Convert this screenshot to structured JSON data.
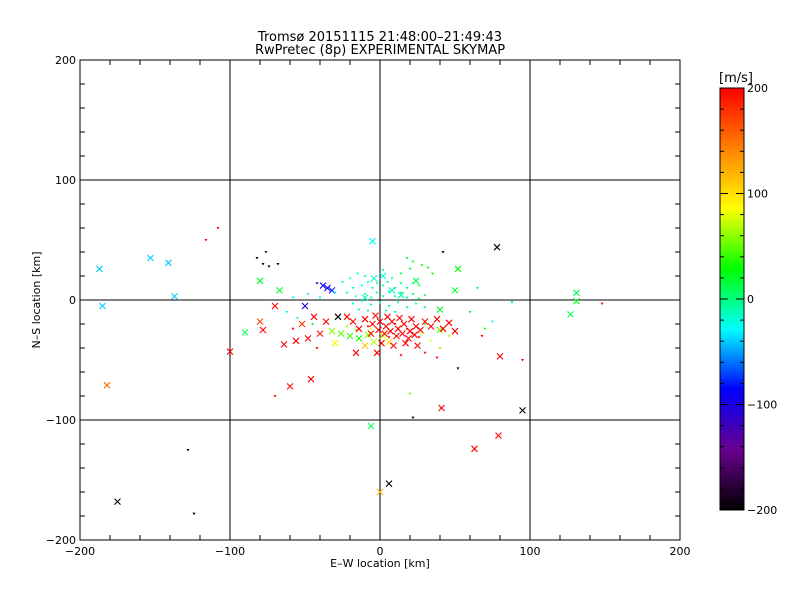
{
  "chart_data": {
    "type": "scatter",
    "title": "Tromsø 20151115 21:48:00–21:49:43",
    "subtitle": "RwPretec (8p) EXPERIMENTAL SKYMAP",
    "xlabel": "E–W location [km]",
    "ylabel": "N–S location [km]",
    "xlim": [
      -200,
      200
    ],
    "ylim": [
      -200,
      200
    ],
    "xticks": [
      -200,
      -100,
      0,
      100,
      200
    ],
    "yticks": [
      -200,
      -100,
      0,
      100,
      200
    ],
    "xtick_labels": [
      "−200",
      "−100",
      "0",
      "100",
      "200"
    ],
    "ytick_labels": [
      "−200",
      "−100",
      "0",
      "100",
      "200"
    ],
    "grid": true,
    "colorbar": {
      "label": "[m/s]",
      "range": [
        -200,
        200
      ],
      "ticks": [
        -200,
        -100,
        0,
        100,
        200
      ],
      "tick_labels": [
        "−200",
        "−100",
        "0",
        "100",
        "200"
      ],
      "colormap_stops": [
        "#000000",
        "#6a0090",
        "#0000ff",
        "#00ffff",
        "#00ff00",
        "#ffff00",
        "#ff8000",
        "#ff0000"
      ]
    },
    "points": [
      {
        "x": 78,
        "y": 44,
        "v": -205,
        "m": "x"
      },
      {
        "x": 95,
        "y": -92,
        "v": -205,
        "m": "x"
      },
      {
        "x": 6,
        "y": -153,
        "v": -205,
        "m": "x"
      },
      {
        "x": -175,
        "y": -168,
        "v": -205,
        "m": "x"
      },
      {
        "x": -128,
        "y": -125,
        "v": -205,
        "m": "."
      },
      {
        "x": -124,
        "y": -178,
        "v": -205,
        "m": "."
      },
      {
        "x": 22,
        "y": -98,
        "v": -205,
        "m": "."
      },
      {
        "x": 52,
        "y": -57,
        "v": -205,
        "m": "."
      },
      {
        "x": 42,
        "y": 40,
        "v": -205,
        "m": "."
      },
      {
        "x": -82,
        "y": 35,
        "v": -205,
        "m": "."
      },
      {
        "x": -78,
        "y": 30,
        "v": -205,
        "m": "."
      },
      {
        "x": -74,
        "y": 28,
        "v": -205,
        "m": "."
      },
      {
        "x": -68,
        "y": 30,
        "v": -205,
        "m": "."
      },
      {
        "x": -76,
        "y": 40,
        "v": -160,
        "m": "."
      },
      {
        "x": -28,
        "y": -14,
        "v": -205,
        "m": "x"
      },
      {
        "x": -38,
        "y": 12,
        "v": -90,
        "m": "x"
      },
      {
        "x": -35,
        "y": 10,
        "v": -90,
        "m": "x"
      },
      {
        "x": -32,
        "y": 8,
        "v": -80,
        "m": "x"
      },
      {
        "x": -50,
        "y": -5,
        "v": -100,
        "m": "x"
      },
      {
        "x": -42,
        "y": 14,
        "v": -110,
        "m": "."
      },
      {
        "x": -153,
        "y": 35,
        "v": -40,
        "m": "x"
      },
      {
        "x": -141,
        "y": 31,
        "v": -40,
        "m": "x"
      },
      {
        "x": -137,
        "y": 3,
        "v": -40,
        "m": "x"
      },
      {
        "x": -187,
        "y": 26,
        "v": -40,
        "m": "x"
      },
      {
        "x": -185,
        "y": -5,
        "v": -40,
        "m": "x"
      },
      {
        "x": -5,
        "y": 49,
        "v": -30,
        "m": "x"
      },
      {
        "x": -90,
        "y": -27,
        "v": 10,
        "m": "x"
      },
      {
        "x": -6,
        "y": -105,
        "v": 10,
        "m": "x"
      },
      {
        "x": 131,
        "y": 6,
        "v": 10,
        "m": "x"
      },
      {
        "x": 127,
        "y": -12,
        "v": 10,
        "m": "x"
      },
      {
        "x": 131,
        "y": -1,
        "v": 20,
        "m": "x"
      },
      {
        "x": 52,
        "y": 26,
        "v": 30,
        "m": "x"
      },
      {
        "x": 50,
        "y": 8,
        "v": 20,
        "m": "x"
      },
      {
        "x": 40,
        "y": -8,
        "v": 20,
        "m": "x"
      },
      {
        "x": -67,
        "y": 8,
        "v": 20,
        "m": "x"
      },
      {
        "x": -80,
        "y": 16,
        "v": 20,
        "m": "x"
      },
      {
        "x": -20,
        "y": 18,
        "v": -20,
        "m": "."
      },
      {
        "x": -15,
        "y": 22,
        "v": -20,
        "m": "."
      },
      {
        "x": -10,
        "y": 20,
        "v": -15,
        "m": "."
      },
      {
        "x": 2,
        "y": 25,
        "v": -10,
        "m": "."
      },
      {
        "x": 8,
        "y": 18,
        "v": -10,
        "m": "."
      },
      {
        "x": 14,
        "y": 22,
        "v": 0,
        "m": "."
      },
      {
        "x": 20,
        "y": 26,
        "v": 20,
        "m": "."
      },
      {
        "x": 28,
        "y": 29,
        "v": 30,
        "m": "."
      },
      {
        "x": 32,
        "y": 27,
        "v": 30,
        "m": "."
      },
      {
        "x": 35,
        "y": 22,
        "v": 20,
        "m": "."
      },
      {
        "x": 22,
        "y": 32,
        "v": 20,
        "m": "."
      },
      {
        "x": 18,
        "y": 35,
        "v": 10,
        "m": "."
      },
      {
        "x": -25,
        "y": 15,
        "v": -15,
        "m": "."
      },
      {
        "x": -18,
        "y": 10,
        "v": -15,
        "m": "."
      },
      {
        "x": -12,
        "y": 12,
        "v": -20,
        "m": "."
      },
      {
        "x": -8,
        "y": 15,
        "v": -20,
        "m": "."
      },
      {
        "x": -5,
        "y": 10,
        "v": -10,
        "m": "."
      },
      {
        "x": -2,
        "y": 14,
        "v": -10,
        "m": "."
      },
      {
        "x": 2,
        "y": 12,
        "v": -10,
        "m": "."
      },
      {
        "x": 5,
        "y": 15,
        "v": -10,
        "m": "."
      },
      {
        "x": 10,
        "y": 10,
        "v": -5,
        "m": "."
      },
      {
        "x": 14,
        "y": 14,
        "v": 0,
        "m": "."
      },
      {
        "x": 18,
        "y": 10,
        "v": 0,
        "m": "."
      },
      {
        "x": 22,
        "y": 14,
        "v": 10,
        "m": "."
      },
      {
        "x": 26,
        "y": 12,
        "v": 10,
        "m": "."
      },
      {
        "x": -22,
        "y": 6,
        "v": -15,
        "m": "."
      },
      {
        "x": -16,
        "y": 3,
        "v": -15,
        "m": "."
      },
      {
        "x": -10,
        "y": 5,
        "v": -15,
        "m": "."
      },
      {
        "x": -6,
        "y": 2,
        "v": -10,
        "m": "."
      },
      {
        "x": -2,
        "y": 6,
        "v": -10,
        "m": "."
      },
      {
        "x": 2,
        "y": 3,
        "v": -10,
        "m": "."
      },
      {
        "x": 6,
        "y": 7,
        "v": -10,
        "m": "."
      },
      {
        "x": 10,
        "y": 3,
        "v": -5,
        "m": "."
      },
      {
        "x": 14,
        "y": 6,
        "v": 0,
        "m": "."
      },
      {
        "x": 18,
        "y": 2,
        "v": 0,
        "m": "."
      },
      {
        "x": 22,
        "y": 5,
        "v": 5,
        "m": "."
      },
      {
        "x": 26,
        "y": 1,
        "v": 5,
        "m": "."
      },
      {
        "x": 30,
        "y": 4,
        "v": 10,
        "m": "."
      },
      {
        "x": -18,
        "y": -3,
        "v": -15,
        "m": "."
      },
      {
        "x": -12,
        "y": -1,
        "v": -15,
        "m": "."
      },
      {
        "x": -6,
        "y": -4,
        "v": -10,
        "m": "."
      },
      {
        "x": 0,
        "y": -2,
        "v": -10,
        "m": "."
      },
      {
        "x": 6,
        "y": -5,
        "v": -10,
        "m": "."
      },
      {
        "x": 12,
        "y": -2,
        "v": -5,
        "m": "."
      },
      {
        "x": 18,
        "y": -6,
        "v": 0,
        "m": "."
      },
      {
        "x": 24,
        "y": -3,
        "v": 0,
        "m": "."
      },
      {
        "x": 30,
        "y": -6,
        "v": 5,
        "m": "."
      },
      {
        "x": -14,
        "y": -8,
        "v": -10,
        "m": "."
      },
      {
        "x": -8,
        "y": -9,
        "v": -10,
        "m": "."
      },
      {
        "x": 4,
        "y": -9,
        "v": -10,
        "m": "."
      },
      {
        "x": 10,
        "y": -10,
        "v": -5,
        "m": "."
      },
      {
        "x": -4,
        "y": 18,
        "v": -20,
        "m": "x"
      },
      {
        "x": 2,
        "y": 20,
        "v": -20,
        "m": "x"
      },
      {
        "x": 8,
        "y": 8,
        "v": -15,
        "m": "x"
      },
      {
        "x": -10,
        "y": 2,
        "v": -15,
        "m": "x"
      },
      {
        "x": 14,
        "y": 4,
        "v": -10,
        "m": "x"
      },
      {
        "x": 24,
        "y": 16,
        "v": 10,
        "m": "x"
      },
      {
        "x": -58,
        "y": 2,
        "v": -20,
        "m": "."
      },
      {
        "x": -48,
        "y": 5,
        "v": -30,
        "m": "."
      },
      {
        "x": -62,
        "y": -10,
        "v": -30,
        "m": "."
      },
      {
        "x": -55,
        "y": -15,
        "v": -20,
        "m": "."
      },
      {
        "x": 88,
        "y": -2,
        "v": -40,
        "m": "."
      },
      {
        "x": 75,
        "y": -18,
        "v": -30,
        "m": "."
      },
      {
        "x": 60,
        "y": -10,
        "v": 20,
        "m": "."
      },
      {
        "x": 65,
        "y": 10,
        "v": 10,
        "m": "."
      },
      {
        "x": 70,
        "y": -24,
        "v": 40,
        "m": "."
      },
      {
        "x": -40,
        "y": 2,
        "v": -30,
        "m": "."
      },
      {
        "x": -30,
        "y": 6,
        "v": -35,
        "m": "."
      },
      {
        "x": -45,
        "y": -20,
        "v": 20,
        "m": "."
      },
      {
        "x": -20,
        "y": -30,
        "v": 40,
        "m": "x"
      },
      {
        "x": -26,
        "y": -28,
        "v": 50,
        "m": "x"
      },
      {
        "x": -32,
        "y": -26,
        "v": 60,
        "m": "x"
      },
      {
        "x": -14,
        "y": -32,
        "v": 30,
        "m": "x"
      },
      {
        "x": -8,
        "y": -29,
        "v": 60,
        "m": "x"
      },
      {
        "x": -4,
        "y": -35,
        "v": 70,
        "m": "x"
      },
      {
        "x": 2,
        "y": -30,
        "v": 80,
        "m": "x"
      },
      {
        "x": 6,
        "y": -35,
        "v": 100,
        "m": "x"
      },
      {
        "x": -10,
        "y": -38,
        "v": 110,
        "m": "x"
      },
      {
        "x": 0,
        "y": -160,
        "v": 120,
        "m": "x"
      },
      {
        "x": -22,
        "y": -22,
        "v": 60,
        "m": "."
      },
      {
        "x": -16,
        "y": -25,
        "v": 60,
        "m": "."
      },
      {
        "x": -6,
        "y": -24,
        "v": 80,
        "m": "."
      },
      {
        "x": 28,
        "y": -28,
        "v": 90,
        "m": "."
      },
      {
        "x": 34,
        "y": -34,
        "v": 80,
        "m": "."
      },
      {
        "x": 40,
        "y": -40,
        "v": 60,
        "m": "."
      },
      {
        "x": 46,
        "y": -30,
        "v": 70,
        "m": "."
      },
      {
        "x": 20,
        "y": -78,
        "v": 50,
        "m": "."
      },
      {
        "x": 40,
        "y": -25,
        "v": 50,
        "m": "x"
      },
      {
        "x": 30,
        "y": -20,
        "v": 40,
        "m": "."
      },
      {
        "x": -30,
        "y": -36,
        "v": 90,
        "m": "x"
      },
      {
        "x": -182,
        "y": -71,
        "v": 150,
        "m": "x"
      },
      {
        "x": -80,
        "y": -18,
        "v": 170,
        "m": "x"
      },
      {
        "x": -60,
        "y": -72,
        "v": 190,
        "m": "x"
      },
      {
        "x": -46,
        "y": -66,
        "v": 200,
        "m": "x"
      },
      {
        "x": -70,
        "y": -80,
        "v": 200,
        "m": "."
      },
      {
        "x": -100,
        "y": -43,
        "v": 200,
        "m": "x"
      },
      {
        "x": -78,
        "y": -25,
        "v": 200,
        "m": "x"
      },
      {
        "x": -64,
        "y": -37,
        "v": 200,
        "m": "x"
      },
      {
        "x": -56,
        "y": -34,
        "v": 200,
        "m": "x"
      },
      {
        "x": -48,
        "y": -32,
        "v": 200,
        "m": "x"
      },
      {
        "x": -40,
        "y": -28,
        "v": 190,
        "m": "x"
      },
      {
        "x": -36,
        "y": -18,
        "v": 200,
        "m": "x"
      },
      {
        "x": -44,
        "y": -14,
        "v": 200,
        "m": "x"
      },
      {
        "x": -52,
        "y": -20,
        "v": 180,
        "m": "x"
      },
      {
        "x": -70,
        "y": -5,
        "v": 200,
        "m": "x"
      },
      {
        "x": -58,
        "y": -24,
        "v": 200,
        "m": "."
      },
      {
        "x": -42,
        "y": -40,
        "v": 200,
        "m": "."
      },
      {
        "x": -116,
        "y": 50,
        "v": 200,
        "m": "."
      },
      {
        "x": -108,
        "y": 60,
        "v": 200,
        "m": "."
      },
      {
        "x": -10,
        "y": -16,
        "v": 200,
        "m": "x"
      },
      {
        "x": -5,
        "y": -20,
        "v": 200,
        "m": "x"
      },
      {
        "x": 0,
        "y": -18,
        "v": 200,
        "m": "x"
      },
      {
        "x": 4,
        "y": -22,
        "v": 200,
        "m": "x"
      },
      {
        "x": 8,
        "y": -18,
        "v": 200,
        "m": "x"
      },
      {
        "x": 12,
        "y": -24,
        "v": 200,
        "m": "x"
      },
      {
        "x": 16,
        "y": -20,
        "v": 200,
        "m": "x"
      },
      {
        "x": 20,
        "y": -26,
        "v": 200,
        "m": "x"
      },
      {
        "x": 24,
        "y": -22,
        "v": 200,
        "m": "x"
      },
      {
        "x": -6,
        "y": -28,
        "v": 200,
        "m": "x"
      },
      {
        "x": -1,
        "y": -25,
        "v": 200,
        "m": "x"
      },
      {
        "x": 3,
        "y": -28,
        "v": 200,
        "m": "x"
      },
      {
        "x": 7,
        "y": -26,
        "v": 200,
        "m": "x"
      },
      {
        "x": 11,
        "y": -30,
        "v": 200,
        "m": "x"
      },
      {
        "x": 15,
        "y": -28,
        "v": 200,
        "m": "x"
      },
      {
        "x": 19,
        "y": -32,
        "v": 200,
        "m": "x"
      },
      {
        "x": 23,
        "y": -29,
        "v": 200,
        "m": "x"
      },
      {
        "x": 27,
        "y": -25,
        "v": 200,
        "m": "x"
      },
      {
        "x": -3,
        "y": -13,
        "v": 200,
        "m": "x"
      },
      {
        "x": 5,
        "y": -14,
        "v": 200,
        "m": "x"
      },
      {
        "x": 13,
        "y": -15,
        "v": 200,
        "m": "x"
      },
      {
        "x": 21,
        "y": -16,
        "v": 200,
        "m": "x"
      },
      {
        "x": 1,
        "y": -36,
        "v": 200,
        "m": "x"
      },
      {
        "x": 9,
        "y": -38,
        "v": 200,
        "m": "x"
      },
      {
        "x": 17,
        "y": -36,
        "v": 200,
        "m": "x"
      },
      {
        "x": 25,
        "y": -38,
        "v": 200,
        "m": "x"
      },
      {
        "x": -14,
        "y": -24,
        "v": 200,
        "m": "x"
      },
      {
        "x": -18,
        "y": -18,
        "v": 200,
        "m": "x"
      },
      {
        "x": -22,
        "y": -14,
        "v": 200,
        "m": "x"
      },
      {
        "x": 30,
        "y": -18,
        "v": 200,
        "m": "x"
      },
      {
        "x": 34,
        "y": -22,
        "v": 200,
        "m": "x"
      },
      {
        "x": 38,
        "y": -16,
        "v": 200,
        "m": "x"
      },
      {
        "x": 42,
        "y": -24,
        "v": 200,
        "m": "x"
      },
      {
        "x": 46,
        "y": -19,
        "v": 200,
        "m": "x"
      },
      {
        "x": 50,
        "y": -26,
        "v": 200,
        "m": "x"
      },
      {
        "x": -2,
        "y": -44,
        "v": 200,
        "m": "x"
      },
      {
        "x": -16,
        "y": -44,
        "v": 200,
        "m": "x"
      },
      {
        "x": 14,
        "y": -46,
        "v": 200,
        "m": "."
      },
      {
        "x": 30,
        "y": -44,
        "v": 200,
        "m": "."
      },
      {
        "x": 38,
        "y": -48,
        "v": 200,
        "m": "."
      },
      {
        "x": 10,
        "y": -20,
        "v": 200,
        "m": "."
      },
      {
        "x": 18,
        "y": -24,
        "v": 200,
        "m": "."
      },
      {
        "x": 26,
        "y": -31,
        "v": 200,
        "m": "."
      },
      {
        "x": -8,
        "y": -22,
        "v": 200,
        "m": "."
      },
      {
        "x": 6,
        "y": -31,
        "v": 200,
        "m": "."
      },
      {
        "x": 41,
        "y": -90,
        "v": 200,
        "m": "x"
      },
      {
        "x": 63,
        "y": -124,
        "v": 200,
        "m": "x"
      },
      {
        "x": 79,
        "y": -113,
        "v": 200,
        "m": "x"
      },
      {
        "x": 80,
        "y": -47,
        "v": 200,
        "m": "x"
      },
      {
        "x": 95,
        "y": -50,
        "v": 200,
        "m": "."
      },
      {
        "x": 148,
        "y": -3,
        "v": 200,
        "m": "."
      },
      {
        "x": 68,
        "y": -30,
        "v": 200,
        "m": "."
      }
    ]
  }
}
